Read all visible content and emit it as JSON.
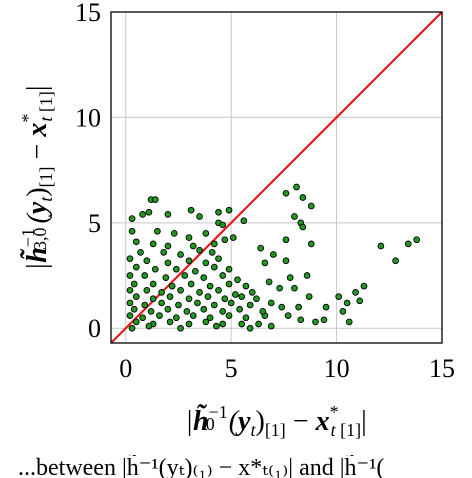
{
  "chart_data": {
    "type": "scatter",
    "xlabel": "|h̃₀⁻¹(yₜ)₍₁₎ − x*ₜ₍₁₎|",
    "ylabel": "|h̃₃,₀⁻¹(yₜ)₍₁₎ − x*ₜ₍₁₎|",
    "xlim": [
      -0.7,
      15
    ],
    "ylim": [
      -0.7,
      15
    ],
    "xticks": [
      0,
      5,
      10,
      15
    ],
    "yticks": [
      0,
      5,
      10,
      15
    ],
    "x_tick_labels": [
      "0",
      "5",
      "10",
      "15"
    ],
    "y_tick_labels": [
      "0",
      "5",
      "10",
      "15"
    ],
    "grid": true,
    "reference_line": {
      "from": [
        -0.7,
        -0.7
      ],
      "to": [
        15,
        15
      ],
      "color": "#e8191a"
    },
    "series": [
      {
        "marker_fill": "#1f9a1f",
        "marker_edge": "#000000",
        "points": [
          [
            1.2,
            6.1
          ],
          [
            1.4,
            6.1
          ],
          [
            0.3,
            5.2
          ],
          [
            0.8,
            5.4
          ],
          [
            1.1,
            5.5
          ],
          [
            2.0,
            5.4
          ],
          [
            3.1,
            5.6
          ],
          [
            3.5,
            5.3
          ],
          [
            4.4,
            5.5
          ],
          [
            4.9,
            5.6
          ],
          [
            5.6,
            5.1
          ],
          [
            4.4,
            5.0
          ],
          [
            4.6,
            4.9
          ],
          [
            5.1,
            4.3
          ],
          [
            0.3,
            4.6
          ],
          [
            1.5,
            4.6
          ],
          [
            2.3,
            4.5
          ],
          [
            3.0,
            4.3
          ],
          [
            3.8,
            4.5
          ],
          [
            0.5,
            4.1
          ],
          [
            1.3,
            4.0
          ],
          [
            2.0,
            3.9
          ],
          [
            3.2,
            3.9
          ],
          [
            4.2,
            4.0
          ],
          [
            4.7,
            4.2
          ],
          [
            0.7,
            3.6
          ],
          [
            1.8,
            3.6
          ],
          [
            2.6,
            3.5
          ],
          [
            3.5,
            3.7
          ],
          [
            4.1,
            3.6
          ],
          [
            0.2,
            3.3
          ],
          [
            1.0,
            3.2
          ],
          [
            2.0,
            3.1
          ],
          [
            3.0,
            3.2
          ],
          [
            3.8,
            3.1
          ],
          [
            4.4,
            3.3
          ],
          [
            0.5,
            2.9
          ],
          [
            1.4,
            2.8
          ],
          [
            2.4,
            2.8
          ],
          [
            3.3,
            2.7
          ],
          [
            4.2,
            2.9
          ],
          [
            4.9,
            2.8
          ],
          [
            0.2,
            2.5
          ],
          [
            0.9,
            2.5
          ],
          [
            1.9,
            2.4
          ],
          [
            2.8,
            2.5
          ],
          [
            3.7,
            2.4
          ],
          [
            4.6,
            2.5
          ],
          [
            5.3,
            2.3
          ],
          [
            0.4,
            2.1
          ],
          [
            1.3,
            2.1
          ],
          [
            2.2,
            2.0
          ],
          [
            3.1,
            2.1
          ],
          [
            4.0,
            2.0
          ],
          [
            4.9,
            2.1
          ],
          [
            5.7,
            2.0
          ],
          [
            0.2,
            1.8
          ],
          [
            1.0,
            1.8
          ],
          [
            1.7,
            1.7
          ],
          [
            2.6,
            1.8
          ],
          [
            3.5,
            1.7
          ],
          [
            4.4,
            1.8
          ],
          [
            5.2,
            1.6
          ],
          [
            6.0,
            1.7
          ],
          [
            0.5,
            1.5
          ],
          [
            1.3,
            1.4
          ],
          [
            2.1,
            1.5
          ],
          [
            3.0,
            1.4
          ],
          [
            3.9,
            1.5
          ],
          [
            4.7,
            1.4
          ],
          [
            5.5,
            1.5
          ],
          [
            0.2,
            1.2
          ],
          [
            0.9,
            1.1
          ],
          [
            1.7,
            1.2
          ],
          [
            2.5,
            1.1
          ],
          [
            3.4,
            1.2
          ],
          [
            4.2,
            1.1
          ],
          [
            5.0,
            1.2
          ],
          [
            5.9,
            1.1
          ],
          [
            0.4,
            0.9
          ],
          [
            1.2,
            0.8
          ],
          [
            2.0,
            0.9
          ],
          [
            2.9,
            0.8
          ],
          [
            3.7,
            0.9
          ],
          [
            4.6,
            0.8
          ],
          [
            5.4,
            0.9
          ],
          [
            0.2,
            0.6
          ],
          [
            0.8,
            0.5
          ],
          [
            1.6,
            0.6
          ],
          [
            2.4,
            0.5
          ],
          [
            3.2,
            0.6
          ],
          [
            4.0,
            0.5
          ],
          [
            4.9,
            0.6
          ],
          [
            5.7,
            0.5
          ],
          [
            6.6,
            0.6
          ],
          [
            0.5,
            0.3
          ],
          [
            1.3,
            0.2
          ],
          [
            2.1,
            0.3
          ],
          [
            3.0,
            0.2
          ],
          [
            3.8,
            0.3
          ],
          [
            4.6,
            0.2
          ],
          [
            5.5,
            0.2
          ],
          [
            6.3,
            0.2
          ],
          [
            6.9,
            0.1
          ],
          [
            0.3,
            0.0
          ],
          [
            1.1,
            0.1
          ],
          [
            2.6,
            0.0
          ],
          [
            4.3,
            0.1
          ],
          [
            5.9,
            0.0
          ],
          [
            7.6,
            6.4
          ],
          [
            8.1,
            6.7
          ],
          [
            8.4,
            6.2
          ],
          [
            8.0,
            5.3
          ],
          [
            8.3,
            5.0
          ],
          [
            8.4,
            4.8
          ],
          [
            8.8,
            5.8
          ],
          [
            7.6,
            4.2
          ],
          [
            6.4,
            3.8
          ],
          [
            7.0,
            3.5
          ],
          [
            6.6,
            3.1
          ],
          [
            7.6,
            3.2
          ],
          [
            8.8,
            4.0
          ],
          [
            7.8,
            2.4
          ],
          [
            8.6,
            2.5
          ],
          [
            6.8,
            2.2
          ],
          [
            7.3,
            1.9
          ],
          [
            8.0,
            1.9
          ],
          [
            8.7,
            1.5
          ],
          [
            6.2,
            1.4
          ],
          [
            6.9,
            1.2
          ],
          [
            7.4,
            1.0
          ],
          [
            8.2,
            1.0
          ],
          [
            6.5,
            0.8
          ],
          [
            7.7,
            0.6
          ],
          [
            8.3,
            0.4
          ],
          [
            9.5,
            1.0
          ],
          [
            10.1,
            1.5
          ],
          [
            10.5,
            1.2
          ],
          [
            10.3,
            0.8
          ],
          [
            10.9,
            1.7
          ],
          [
            11.3,
            2.0
          ],
          [
            10.6,
            0.3
          ],
          [
            11.1,
            1.3
          ],
          [
            12.1,
            3.9
          ],
          [
            12.8,
            3.2
          ],
          [
            13.4,
            4.0
          ],
          [
            13.8,
            4.2
          ],
          [
            9.0,
            0.3
          ],
          [
            9.4,
            0.4
          ]
        ]
      }
    ]
  },
  "caption": {
    "text": "...between |h̃⁻¹(yₜ)₍₁₎ − x*ₜ₍₁₎| and |h̃⁻¹("
  }
}
